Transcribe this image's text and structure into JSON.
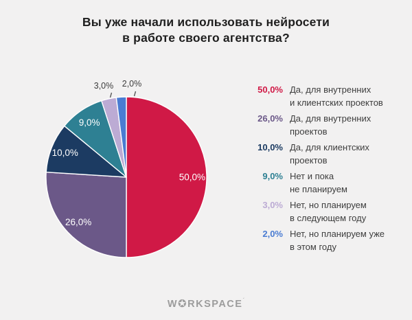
{
  "header": {
    "title_lines": [
      "Вы уже начали использовать нейросети",
      "в работе своего агентства?"
    ]
  },
  "chart_data": {
    "type": "pie",
    "title": "Вы уже начали использовать нейросети в работе своего агентства?",
    "unit": "%",
    "start_angle_deg": 0,
    "direction": "clockwise",
    "legend_position": "right",
    "slices": [
      {
        "label": "Да, для внутренних и клиентских проектов",
        "label_lines": [
          "Да, для внутренних",
          "и клиентских проектов"
        ],
        "value": 50.0,
        "pct_label": "50,0%",
        "color": "#d01946"
      },
      {
        "label": "Да, для внутренних проектов",
        "label_lines": [
          "Да, для внутренних",
          "проектов"
        ],
        "value": 26.0,
        "pct_label": "26,0%",
        "color": "#6b5888"
      },
      {
        "label": "Да, для клиентских проектов",
        "label_lines": [
          "Да, для клиентских",
          "проектов"
        ],
        "value": 10.0,
        "pct_label": "10,0%",
        "color": "#1c3b62"
      },
      {
        "label": "Нет и пока не планируем",
        "label_lines": [
          "Нет и пока",
          "не планируем"
        ],
        "value": 9.0,
        "pct_label": "9,0%",
        "color": "#2e8093"
      },
      {
        "label": "Нет, но планируем в следующем году",
        "label_lines": [
          "Нет, но планируем",
          "в следующем году"
        ],
        "value": 3.0,
        "pct_label": "3,0%",
        "color": "#bcabd4"
      },
      {
        "label": "Нет, но планируем уже в этом году",
        "label_lines": [
          "Нет, но планируем уже",
          "в этом году"
        ],
        "value": 2.0,
        "pct_label": "2,0%",
        "color": "#4a7cd2"
      }
    ],
    "colors": {
      "background": "#f2f1f1",
      "inside_label_text": "#ffffff",
      "outside_label_text": "#3c3c3c",
      "slice_border": "#ffffff",
      "title_text": "#1e1e1e",
      "legend_label_text": "#3d3d3d",
      "logo_text": "#9c9c9c"
    }
  },
  "footer": {
    "logo_pre": "W",
    "logo_star": "✪",
    "logo_post": "RKSPACE",
    "logo_mark": "´"
  }
}
